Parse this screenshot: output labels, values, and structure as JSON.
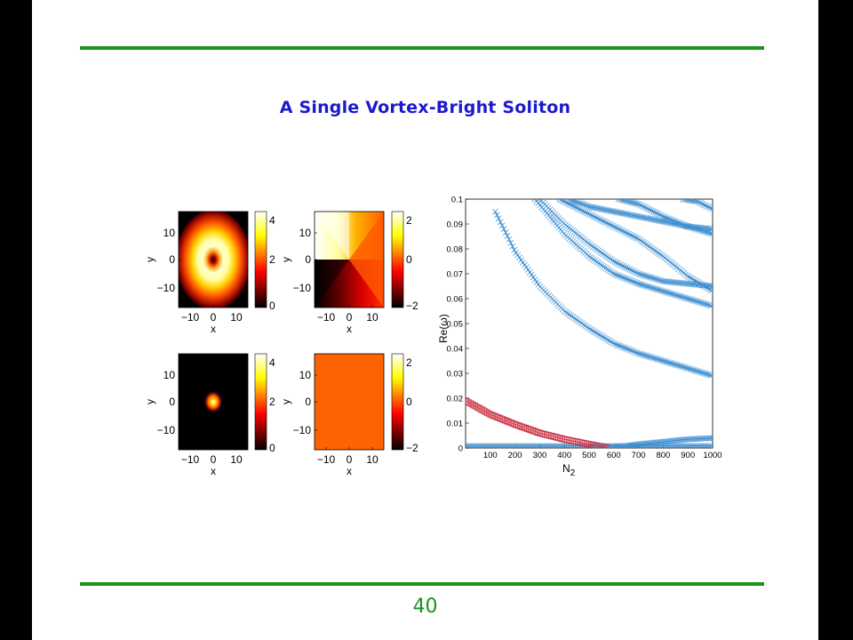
{
  "slide": {
    "title": "A Single Vortex-Bright Soliton",
    "page_number": "40"
  },
  "chart_data": [
    {
      "type": "heatmap",
      "id": "vortex-density",
      "xlabel": "x",
      "ylabel": "y",
      "x_ticks": [
        "−10",
        "0",
        "10"
      ],
      "y_ticks": [
        "10",
        "0",
        "−10"
      ],
      "colorbar_ticks": [
        "4",
        "2",
        "0"
      ],
      "colormap": "hot",
      "description_values": {
        "peak": 4,
        "min": 0
      }
    },
    {
      "type": "heatmap",
      "id": "vortex-phase",
      "xlabel": "x",
      "ylabel": "y",
      "x_ticks": [
        "−10",
        "0",
        "10"
      ],
      "y_ticks": [
        "10",
        "0",
        "−10"
      ],
      "colorbar_ticks": [
        "2",
        "0",
        "−2"
      ],
      "colormap": "hot"
    },
    {
      "type": "heatmap",
      "id": "bright-density",
      "xlabel": "x",
      "ylabel": "y",
      "x_ticks": [
        "−10",
        "0",
        "10"
      ],
      "y_ticks": [
        "10",
        "0",
        "−10"
      ],
      "colorbar_ticks": [
        "4",
        "2",
        "0"
      ],
      "colormap": "hot"
    },
    {
      "type": "heatmap",
      "id": "bright-phase",
      "xlabel": "x",
      "ylabel": "y",
      "x_ticks": [
        "−10",
        "0",
        "10"
      ],
      "y_ticks": [
        "10",
        "0",
        "−10"
      ],
      "colorbar_ticks": [
        "2",
        "0",
        "−2"
      ],
      "colormap": "hot",
      "fill_color": "#ff6200"
    },
    {
      "type": "scatter",
      "id": "stability-spectrum",
      "xlabel": "N2",
      "xlabel_main": "N",
      "xlabel_sub": "2",
      "ylabel": "Re(ω)",
      "xlim": [
        0,
        1000
      ],
      "ylim": [
        0,
        0.1
      ],
      "x_ticks": [
        100,
        200,
        300,
        400,
        500,
        600,
        700,
        800,
        900,
        1000
      ],
      "y_ticks": [
        0,
        0.01,
        0.02,
        0.03,
        0.04,
        0.05,
        0.06,
        0.07,
        0.08,
        0.09,
        0.1
      ],
      "y_tick_labels": [
        "0",
        "0.01",
        "0.02",
        "0.03",
        "0.04",
        "0.05",
        "0.06",
        "0.07",
        "0.08",
        "0.09",
        "0.1"
      ],
      "series": [
        {
          "color": "#3e8ed0",
          "marker": "x",
          "x": [
            0,
            200,
            400,
            600,
            800,
            1000
          ],
          "y": [
            0.0008,
            0.0008,
            0.0008,
            0.0008,
            0.0008,
            0.0008
          ]
        },
        {
          "color": "#cc3344",
          "marker": "square",
          "x": [
            0,
            100,
            200,
            300,
            400,
            500,
            580
          ],
          "y": [
            0.019,
            0.0135,
            0.0095,
            0.006,
            0.0035,
            0.0015,
            0
          ]
        },
        {
          "color": "#3e8ed0",
          "marker": "x",
          "x": [
            580,
            700,
            800,
            900,
            1000
          ],
          "y": [
            0,
            0.0015,
            0.0025,
            0.0035,
            0.004
          ]
        },
        {
          "color": "#3e8ed0",
          "marker": "x",
          "x": [
            120,
            200,
            300,
            400,
            500,
            600,
            700,
            800,
            900,
            1000
          ],
          "y": [
            0.095,
            0.079,
            0.065,
            0.055,
            0.048,
            0.042,
            0.038,
            0.035,
            0.032,
            0.029
          ]
        },
        {
          "color": "#3e8ed0",
          "marker": "x",
          "x": [
            280,
            400,
            500,
            600,
            700,
            800,
            900,
            1000
          ],
          "y": [
            0.1,
            0.086,
            0.077,
            0.07,
            0.066,
            0.063,
            0.06,
            0.057
          ]
        },
        {
          "color": "#3e8ed0",
          "marker": "x",
          "x": [
            300,
            400,
            500,
            600,
            700,
            800,
            900,
            1000
          ],
          "y": [
            0.1,
            0.09,
            0.082,
            0.075,
            0.07,
            0.067,
            0.066,
            0.065
          ]
        },
        {
          "color": "#3e8ed0",
          "marker": "x",
          "x": [
            380,
            500,
            600,
            700,
            800,
            900,
            1000
          ],
          "y": [
            0.1,
            0.094,
            0.089,
            0.084,
            0.077,
            0.069,
            0.063
          ]
        },
        {
          "color": "#3e8ed0",
          "marker": "x",
          "x": [
            420,
            500,
            600,
            700,
            800,
            900,
            1000
          ],
          "y": [
            0.1,
            0.097,
            0.095,
            0.093,
            0.091,
            0.089,
            0.088
          ]
        },
        {
          "color": "#3e8ed0",
          "marker": "x",
          "x": [
            620,
            700,
            800,
            900,
            1000
          ],
          "y": [
            0.1,
            0.098,
            0.093,
            0.089,
            0.086
          ]
        },
        {
          "color": "#3e8ed0",
          "marker": "x",
          "x": [
            880,
            940,
            1000
          ],
          "y": [
            0.1,
            0.099,
            0.096
          ]
        }
      ]
    }
  ]
}
